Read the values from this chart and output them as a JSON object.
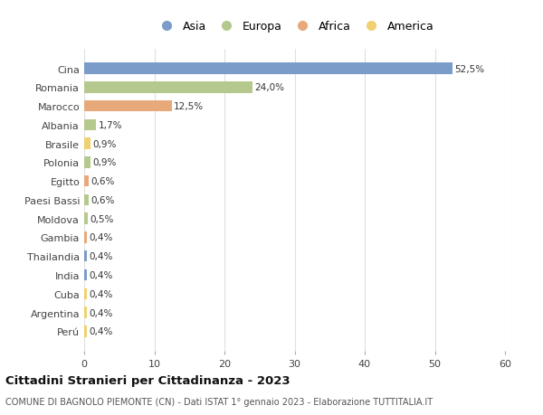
{
  "categories": [
    "Cina",
    "Romania",
    "Marocco",
    "Albania",
    "Brasile",
    "Polonia",
    "Egitto",
    "Paesi Bassi",
    "Moldova",
    "Gambia",
    "Thailandia",
    "India",
    "Cuba",
    "Argentina",
    "Perú"
  ],
  "values": [
    52.5,
    24.0,
    12.5,
    1.7,
    0.9,
    0.9,
    0.6,
    0.6,
    0.5,
    0.4,
    0.4,
    0.4,
    0.4,
    0.4,
    0.4
  ],
  "labels": [
    "52,5%",
    "24,0%",
    "12,5%",
    "1,7%",
    "0,9%",
    "0,9%",
    "0,6%",
    "0,6%",
    "0,5%",
    "0,4%",
    "0,4%",
    "0,4%",
    "0,4%",
    "0,4%",
    "0,4%"
  ],
  "colors": [
    "#7b9cc9",
    "#b5c98e",
    "#e8a97a",
    "#b5c98e",
    "#f0d070",
    "#b5c98e",
    "#e8a97a",
    "#b5c98e",
    "#b5c98e",
    "#e8a97a",
    "#7b9cc9",
    "#7b9cc9",
    "#f0d070",
    "#f0d070",
    "#f0d070"
  ],
  "legend_labels": [
    "Asia",
    "Europa",
    "Africa",
    "America"
  ],
  "legend_colors": [
    "#7b9cc9",
    "#b5c98e",
    "#e8a97a",
    "#f0d070"
  ],
  "title": "Cittadini Stranieri per Cittadinanza - 2023",
  "subtitle": "COMUNE DI BAGNOLO PIEMONTE (CN) - Dati ISTAT 1° gennaio 2023 - Elaborazione TUTTITALIA.IT",
  "xlim": [
    0,
    60
  ],
  "xticks": [
    0,
    10,
    20,
    30,
    40,
    50,
    60
  ],
  "background_color": "#ffffff",
  "grid_color": "#e0e0e0"
}
